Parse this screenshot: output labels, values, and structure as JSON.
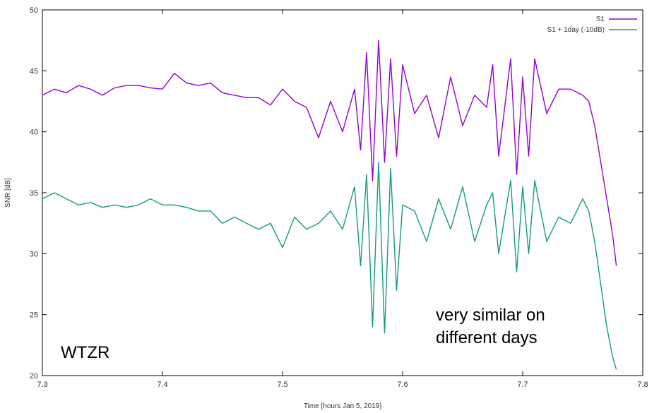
{
  "chart_data": {
    "type": "line",
    "title": "",
    "xlabel": "Time [hours Jan 5, 2019]",
    "ylabel": "SNR [dB]",
    "xlim": [
      7.3,
      7.8
    ],
    "ylim": [
      20,
      50
    ],
    "xticks": [
      "7.3",
      "7.4",
      "7.5",
      "7.6",
      "7.7",
      "7.8"
    ],
    "yticks": [
      "20",
      "25",
      "30",
      "35",
      "40",
      "45",
      "50"
    ],
    "grid": false,
    "legend_position": "top-right",
    "series": [
      {
        "name": "S1",
        "color": "#9400d3",
        "x": [
          7.3,
          7.31,
          7.32,
          7.33,
          7.34,
          7.35,
          7.36,
          7.37,
          7.38,
          7.39,
          7.4,
          7.41,
          7.42,
          7.43,
          7.44,
          7.45,
          7.46,
          7.47,
          7.48,
          7.49,
          7.5,
          7.51,
          7.52,
          7.53,
          7.54,
          7.55,
          7.56,
          7.565,
          7.57,
          7.575,
          7.58,
          7.585,
          7.59,
          7.595,
          7.6,
          7.61,
          7.62,
          7.63,
          7.64,
          7.65,
          7.66,
          7.67,
          7.675,
          7.68,
          7.69,
          7.695,
          7.7,
          7.705,
          7.71,
          7.72,
          7.73,
          7.74,
          7.75,
          7.755,
          7.76,
          7.765,
          7.77,
          7.775,
          7.778
        ],
        "y": [
          43.0,
          43.5,
          43.2,
          43.8,
          43.5,
          43.0,
          43.6,
          43.8,
          43.8,
          43.6,
          43.5,
          44.8,
          44.0,
          43.8,
          44.0,
          43.2,
          43.0,
          42.8,
          42.8,
          42.2,
          43.5,
          42.5,
          42.0,
          39.5,
          42.5,
          40.0,
          43.5,
          38.5,
          46.5,
          36.0,
          47.5,
          37.5,
          46.0,
          38.0,
          45.5,
          41.5,
          43.0,
          39.5,
          44.5,
          40.5,
          43.0,
          42.0,
          45.5,
          38.0,
          46.0,
          36.5,
          44.5,
          38.0,
          46.0,
          41.5,
          43.5,
          43.5,
          43.0,
          42.5,
          40.5,
          37.5,
          34.5,
          31.5,
          29.0
        ]
      },
      {
        "name": "S1 + 1day (-10dB)",
        "color": "#139c7c",
        "x": [
          7.3,
          7.31,
          7.32,
          7.33,
          7.34,
          7.35,
          7.36,
          7.37,
          7.38,
          7.39,
          7.4,
          7.41,
          7.42,
          7.43,
          7.44,
          7.45,
          7.46,
          7.47,
          7.48,
          7.49,
          7.5,
          7.51,
          7.52,
          7.53,
          7.54,
          7.55,
          7.56,
          7.565,
          7.57,
          7.575,
          7.58,
          7.585,
          7.59,
          7.595,
          7.6,
          7.61,
          7.62,
          7.63,
          7.64,
          7.65,
          7.66,
          7.67,
          7.675,
          7.68,
          7.69,
          7.695,
          7.7,
          7.705,
          7.71,
          7.72,
          7.73,
          7.74,
          7.75,
          7.755,
          7.76,
          7.765,
          7.77,
          7.775,
          7.778
        ],
        "y": [
          34.5,
          35.0,
          34.5,
          34.0,
          34.2,
          33.8,
          34.0,
          33.8,
          34.0,
          34.5,
          34.0,
          34.0,
          33.8,
          33.5,
          33.5,
          32.5,
          33.0,
          32.5,
          32.0,
          32.5,
          30.5,
          33.0,
          32.0,
          32.5,
          33.5,
          32.0,
          35.5,
          29.0,
          36.5,
          24.0,
          37.5,
          23.5,
          37.0,
          27.0,
          34.0,
          33.5,
          31.0,
          34.5,
          32.0,
          35.5,
          31.0,
          34.0,
          35.0,
          30.0,
          36.0,
          28.5,
          35.5,
          30.0,
          36.0,
          31.0,
          33.0,
          32.5,
          34.5,
          33.5,
          31.0,
          27.5,
          24.0,
          21.5,
          20.5
        ]
      }
    ],
    "annotations": [
      "WTZR",
      "very similar on",
      "different days"
    ]
  }
}
